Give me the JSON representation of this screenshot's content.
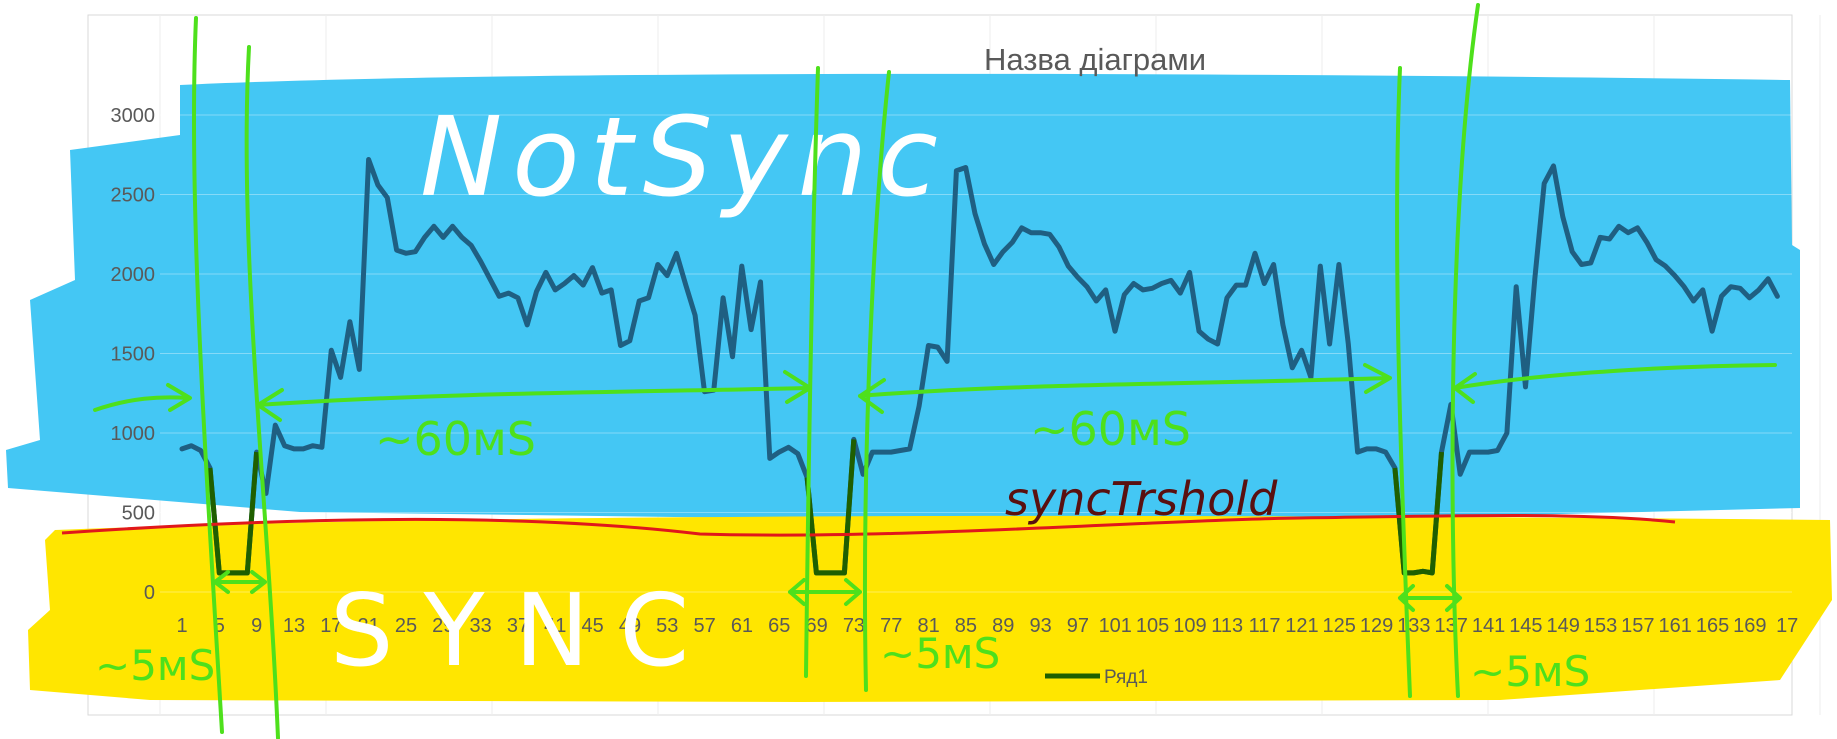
{
  "chart_data": {
    "type": "line",
    "title": "Назва діаграми",
    "xlabel": "",
    "ylabel": "",
    "ylim": [
      0,
      3000
    ],
    "y_ticks": [
      "3000",
      "2500",
      "2000",
      "1500",
      "1000",
      "500",
      "0"
    ],
    "x_tick_labels": [
      "1",
      "5",
      "9",
      "13",
      "17",
      "21",
      "25",
      "29",
      "33",
      "37",
      "41",
      "45",
      "49",
      "53",
      "57",
      "61",
      "65",
      "69",
      "73",
      "77",
      "81",
      "85",
      "89",
      "93",
      "97",
      "101",
      "105",
      "109",
      "113",
      "117",
      "121",
      "125",
      "129",
      "133",
      "137",
      "141",
      "145",
      "149",
      "153",
      "157",
      "161",
      "165",
      "169",
      "17"
    ],
    "grid": "horizontal",
    "legend_position": "bottom",
    "series": [
      {
        "name": "Ряд1",
        "color": "#1f5f82",
        "x": [
          1,
          2,
          3,
          4,
          5,
          6,
          7,
          8,
          9,
          10,
          11,
          12,
          13,
          14,
          15,
          16,
          17,
          18,
          19,
          20,
          21,
          22,
          23,
          24,
          25,
          26,
          27,
          28,
          29,
          30,
          31,
          32,
          33,
          34,
          35,
          36,
          37,
          38,
          39,
          40,
          41,
          42,
          43,
          44,
          45,
          46,
          47,
          48,
          49,
          50,
          51,
          52,
          53,
          54,
          55,
          56,
          57,
          58,
          59,
          60,
          61,
          62,
          63,
          64,
          65,
          66,
          67,
          68,
          69,
          70,
          71,
          72,
          73,
          74,
          75,
          76,
          77,
          78,
          79,
          80,
          81,
          82,
          83,
          84,
          85,
          86,
          87,
          88,
          89,
          90,
          91,
          92,
          93,
          94,
          95,
          96,
          97,
          98,
          99,
          100,
          101,
          102,
          103,
          104,
          105,
          106,
          107,
          108,
          109,
          110,
          111,
          112,
          113,
          114,
          115,
          116,
          117,
          118,
          119,
          120,
          121,
          122,
          123,
          124,
          125,
          126,
          127,
          128,
          129,
          130,
          131,
          132,
          133,
          134,
          135,
          136,
          137,
          138,
          139,
          140,
          141,
          142,
          143,
          144,
          145,
          146,
          147,
          148,
          149,
          150,
          151,
          152,
          153,
          154,
          155,
          156,
          157,
          158,
          159,
          160,
          161,
          162,
          163,
          164,
          165,
          166,
          167,
          168,
          169,
          170,
          171,
          172
        ],
        "values": [
          900,
          920,
          890,
          780,
          120,
          120,
          120,
          120,
          880,
          620,
          1050,
          920,
          900,
          900,
          920,
          910,
          1520,
          1350,
          1700,
          1400,
          2720,
          2560,
          2480,
          2150,
          2130,
          2140,
          2230,
          2300,
          2230,
          2300,
          2230,
          2180,
          2080,
          1970,
          1860,
          1880,
          1850,
          1680,
          1890,
          2010,
          1900,
          1940,
          1990,
          1930,
          2040,
          1880,
          1900,
          1550,
          1580,
          1830,
          1850,
          2060,
          1990,
          2130,
          1930,
          1740,
          1260,
          1270,
          1850,
          1480,
          2050,
          1650,
          1950,
          840,
          880,
          910,
          870,
          720,
          120,
          120,
          120,
          120,
          960,
          740,
          880,
          880,
          880,
          890,
          900,
          1170,
          1550,
          1540,
          1450,
          2650,
          2670,
          2380,
          2190,
          2060,
          2140,
          2200,
          2290,
          2260,
          2260,
          2250,
          2170,
          2050,
          1980,
          1920,
          1830,
          1900,
          1640,
          1870,
          1940,
          1900,
          1910,
          1940,
          1960,
          1880,
          2010,
          1640,
          1590,
          1560,
          1850,
          1930,
          1930,
          2130,
          1940,
          2060,
          1680,
          1410,
          1520,
          1350,
          2050,
          1560,
          2060,
          1560,
          880,
          900,
          900,
          880,
          780,
          120,
          120,
          130,
          120,
          880,
          1180,
          740,
          880,
          880,
          880,
          890,
          1000,
          1920,
          1290,
          1970,
          2570,
          2680,
          2360,
          2140,
          2060,
          2070,
          2230,
          2220,
          2300,
          2260,
          2290,
          2200,
          2090,
          2050,
          1990,
          1920,
          1830,
          1900,
          1640,
          1860,
          1920,
          1910,
          1850,
          1900,
          1970,
          1860
        ]
      }
    ]
  },
  "annotations": {
    "not_sync_label": "NotSync",
    "sync_label": "SYNC",
    "threshold_label": "syncTrshold",
    "interval_label_1": "~60мS",
    "interval_label_2": "~60мS",
    "pulse_label_1": "~5мS",
    "pulse_label_2": "~5мS",
    "pulse_label_3": "~5мS",
    "colors": {
      "not_sync_band": "#44c7f4",
      "sync_band": "#ffe600",
      "green_marker": "#4ee01c",
      "threshold_line": "#e0181b",
      "threshold_text": "#5a1010",
      "handwriting_white": "#ffffff"
    }
  }
}
